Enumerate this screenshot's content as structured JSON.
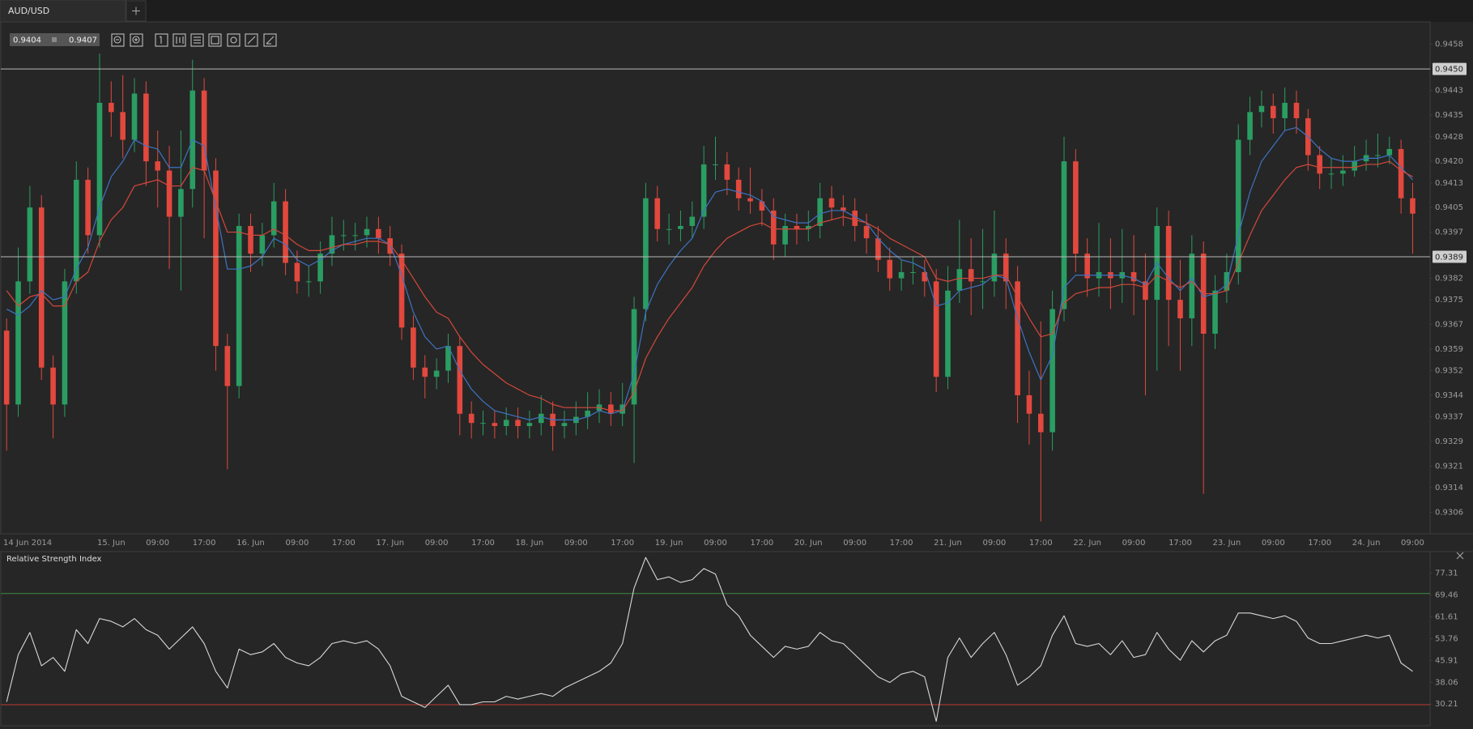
{
  "tab": {
    "title": "AUD/USD"
  },
  "quote": {
    "bid": 0.9404,
    "ask": 0.9407
  },
  "chart_data": [
    {
      "type": "candlestick",
      "up_color": "#2a9d62",
      "down_color": "#e2483d",
      "categories": [
        "14 Jun 2014",
        null,
        null,
        null,
        null,
        null,
        null,
        null,
        null,
        "15. Jun",
        null,
        null,
        null,
        "09:00",
        null,
        null,
        null,
        "17:00",
        null,
        null,
        null,
        "16. Jun",
        null,
        null,
        null,
        "09:00",
        null,
        null,
        null,
        "17:00",
        null,
        null,
        null,
        "17. Jun",
        null,
        null,
        null,
        "09:00",
        null,
        null,
        null,
        "17:00",
        null,
        null,
        null,
        "18. Jun",
        null,
        null,
        null,
        "09:00",
        null,
        null,
        null,
        "17:00",
        null,
        null,
        null,
        "19. Jun",
        null,
        null,
        null,
        "09:00",
        null,
        null,
        null,
        "17:00",
        null,
        null,
        null,
        "20. Jun",
        null,
        null,
        null,
        "09:00",
        null,
        null,
        null,
        "17:00",
        null,
        null,
        null,
        "21. Jun",
        null,
        null,
        null,
        "09:00",
        null,
        null,
        null,
        "17:00",
        null,
        null,
        null,
        "22. Jun",
        null,
        null,
        null,
        "09:00",
        null,
        null,
        null,
        "17:00",
        null,
        null,
        null,
        "23. Jun",
        null,
        null,
        null,
        "09:00",
        null,
        null,
        null,
        "17:00",
        null,
        null,
        null,
        "24. Jun",
        null,
        null,
        null,
        "09:00"
      ],
      "open": [
        0.9365,
        0.9341,
        0.9381,
        0.9405,
        0.9353,
        0.9341,
        0.9381,
        0.9414,
        0.9396,
        0.9439,
        0.9436,
        0.9427,
        0.9442,
        0.942,
        0.9417,
        0.9402,
        0.9411,
        0.9443,
        0.9417,
        0.936,
        0.9347,
        0.9399,
        0.939,
        0.9396,
        0.9407,
        0.9387,
        0.9381,
        0.9381,
        0.939,
        0.9396,
        0.9396,
        0.9396,
        0.9398,
        0.9395,
        0.939,
        0.9366,
        0.9353,
        0.935,
        0.9352,
        0.936,
        0.9338,
        0.9335,
        0.9335,
        0.9334,
        0.9336,
        0.9334,
        0.9335,
        0.9338,
        0.9334,
        0.9335,
        0.9337,
        0.9339,
        0.9341,
        0.9338,
        0.9341,
        0.9372,
        0.9408,
        0.9398,
        0.9398,
        0.9399,
        0.9402,
        0.9419,
        0.9419,
        0.9414,
        0.9408,
        0.9407,
        0.9404,
        0.9393,
        0.9399,
        0.9398,
        0.9399,
        0.9408,
        0.9405,
        0.9404,
        0.9399,
        0.9395,
        0.9388,
        0.9382,
        0.9384,
        0.9384,
        0.9381,
        0.935,
        0.9378,
        0.9385,
        0.9381,
        0.9381,
        0.939,
        0.9381,
        0.9344,
        0.9338,
        0.9332,
        0.9372,
        0.942,
        0.939,
        0.9382,
        0.9384,
        0.9382,
        0.9384,
        0.9381,
        0.9375,
        0.9399,
        0.9375,
        0.9369,
        0.939,
        0.9364,
        0.9378,
        0.9384,
        0.9427,
        0.9436,
        0.9438,
        0.9434,
        0.9439,
        0.9434,
        0.9422,
        0.9416,
        0.9416,
        0.9417,
        0.942,
        0.9422,
        0.9422,
        0.9424,
        0.9408
      ],
      "high": [
        0.9369,
        0.9392,
        0.9412,
        0.9409,
        0.9357,
        0.9385,
        0.942,
        0.9418,
        0.9455,
        0.9446,
        0.9448,
        0.9447,
        0.9446,
        0.943,
        0.9425,
        0.943,
        0.9453,
        0.9447,
        0.9421,
        0.9364,
        0.9403,
        0.9403,
        0.94,
        0.9413,
        0.9411,
        0.9391,
        0.9386,
        0.9394,
        0.9402,
        0.9401,
        0.94,
        0.9402,
        0.9402,
        0.9399,
        0.9393,
        0.937,
        0.9357,
        0.9356,
        0.9364,
        0.9363,
        0.9342,
        0.9339,
        0.9339,
        0.934,
        0.934,
        0.9339,
        0.9344,
        0.9342,
        0.9339,
        0.9342,
        0.9345,
        0.9346,
        0.9345,
        0.9348,
        0.9376,
        0.9413,
        0.9412,
        0.9403,
        0.9404,
        0.9407,
        0.9425,
        0.9428,
        0.9423,
        0.9418,
        0.9418,
        0.9411,
        0.9408,
        0.9403,
        0.9403,
        0.9404,
        0.9413,
        0.9412,
        0.9409,
        0.9408,
        0.9403,
        0.9399,
        0.9392,
        0.9388,
        0.9389,
        0.9388,
        0.9385,
        0.9386,
        0.9401,
        0.9395,
        0.9398,
        0.9404,
        0.9395,
        0.9386,
        0.9352,
        0.9368,
        0.9378,
        0.9428,
        0.9424,
        0.9395,
        0.94,
        0.9395,
        0.9398,
        0.9396,
        0.939,
        0.9405,
        0.9404,
        0.9388,
        0.9396,
        0.9394,
        0.9383,
        0.939,
        0.9432,
        0.9441,
        0.9443,
        0.9442,
        0.9444,
        0.9443,
        0.9437,
        0.9425,
        0.9421,
        0.9422,
        0.9425,
        0.9427,
        0.9429,
        0.9428,
        0.9427,
        0.9413
      ],
      "low": [
        0.9326,
        0.9337,
        0.9377,
        0.9349,
        0.933,
        0.9337,
        0.9377,
        0.939,
        0.9392,
        0.9428,
        0.9421,
        0.9423,
        0.9412,
        0.9405,
        0.9385,
        0.9378,
        0.9405,
        0.9395,
        0.9352,
        0.932,
        0.9343,
        0.9384,
        0.9386,
        0.9392,
        0.9383,
        0.9377,
        0.9376,
        0.9377,
        0.9386,
        0.9391,
        0.9391,
        0.9392,
        0.939,
        0.9386,
        0.9362,
        0.9349,
        0.9343,
        0.9346,
        0.9348,
        0.9331,
        0.933,
        0.9331,
        0.933,
        0.9331,
        0.933,
        0.933,
        0.9331,
        0.9326,
        0.933,
        0.9331,
        0.9333,
        0.9335,
        0.9334,
        0.9334,
        0.9322,
        0.9368,
        0.9394,
        0.9393,
        0.9394,
        0.9395,
        0.9398,
        0.9414,
        0.9409,
        0.9404,
        0.9403,
        0.9399,
        0.9388,
        0.9389,
        0.9393,
        0.9394,
        0.9395,
        0.9401,
        0.9399,
        0.9394,
        0.939,
        0.9384,
        0.9378,
        0.9378,
        0.938,
        0.9376,
        0.9345,
        0.9346,
        0.9374,
        0.937,
        0.9372,
        0.9376,
        0.9372,
        0.9335,
        0.9328,
        0.9303,
        0.9326,
        0.9368,
        0.9384,
        0.9376,
        0.9376,
        0.9372,
        0.9374,
        0.937,
        0.9344,
        0.9352,
        0.936,
        0.9352,
        0.936,
        0.9312,
        0.9359,
        0.9374,
        0.938,
        0.9422,
        0.9431,
        0.9429,
        0.943,
        0.9429,
        0.9417,
        0.9411,
        0.9411,
        0.9412,
        0.9415,
        0.9417,
        0.9418,
        0.9419,
        0.9403,
        0.939
      ],
      "close": [
        0.9341,
        0.9381,
        0.9405,
        0.9353,
        0.9341,
        0.9381,
        0.9414,
        0.9396,
        0.9439,
        0.9436,
        0.9427,
        0.9442,
        0.942,
        0.9417,
        0.9402,
        0.9411,
        0.9443,
        0.9417,
        0.936,
        0.9347,
        0.9399,
        0.939,
        0.9396,
        0.9407,
        0.9387,
        0.9381,
        0.9381,
        0.939,
        0.9396,
        0.9396,
        0.9396,
        0.9398,
        0.9395,
        0.939,
        0.9366,
        0.9353,
        0.935,
        0.9352,
        0.936,
        0.9338,
        0.9335,
        0.9335,
        0.9334,
        0.9336,
        0.9334,
        0.9335,
        0.9338,
        0.9334,
        0.9335,
        0.9337,
        0.9339,
        0.9341,
        0.9338,
        0.9341,
        0.9372,
        0.9408,
        0.9398,
        0.9398,
        0.9399,
        0.9402,
        0.9419,
        0.9419,
        0.9414,
        0.9408,
        0.9407,
        0.9404,
        0.9393,
        0.9399,
        0.9398,
        0.9399,
        0.9408,
        0.9405,
        0.9404,
        0.9399,
        0.9395,
        0.9388,
        0.9382,
        0.9384,
        0.9384,
        0.9381,
        0.935,
        0.9378,
        0.9385,
        0.9381,
        0.9381,
        0.939,
        0.9381,
        0.9344,
        0.9338,
        0.9332,
        0.9372,
        0.942,
        0.939,
        0.9382,
        0.9384,
        0.9382,
        0.9384,
        0.9381,
        0.9375,
        0.9399,
        0.9375,
        0.9369,
        0.939,
        0.9364,
        0.9378,
        0.9384,
        0.9427,
        0.9436,
        0.9438,
        0.9434,
        0.9439,
        0.9434,
        0.9422,
        0.9416,
        0.9416,
        0.9417,
        0.942,
        0.9422,
        0.9422,
        0.9424,
        0.9408,
        0.9403
      ],
      "lines": [
        {
          "color": "#3c74c2",
          "values": [
            0.9372,
            0.937,
            0.9373,
            0.9378,
            0.9375,
            0.9376,
            0.9385,
            0.9392,
            0.9405,
            0.9415,
            0.942,
            0.9427,
            0.9425,
            0.9424,
            0.9418,
            0.9418,
            0.9427,
            0.9425,
            0.9405,
            0.9385,
            0.9385,
            0.9386,
            0.9389,
            0.9395,
            0.9393,
            0.9388,
            0.9386,
            0.9388,
            0.9391,
            0.9393,
            0.9394,
            0.9395,
            0.9395,
            0.9393,
            0.9383,
            0.9371,
            0.9363,
            0.9359,
            0.936,
            0.9352,
            0.9346,
            0.9342,
            0.9339,
            0.9338,
            0.9337,
            0.9336,
            0.9337,
            0.9336,
            0.9336,
            0.9336,
            0.9337,
            0.9339,
            0.9338,
            0.9339,
            0.9351,
            0.9371,
            0.938,
            0.9386,
            0.9391,
            0.9395,
            0.9404,
            0.941,
            0.9411,
            0.941,
            0.9409,
            0.9407,
            0.9402,
            0.9401,
            0.94,
            0.94,
            0.9403,
            0.9404,
            0.9404,
            0.9402,
            0.94,
            0.9395,
            0.9391,
            0.9388,
            0.9387,
            0.9385,
            0.9373,
            0.9374,
            0.9378,
            0.9379,
            0.938,
            0.9383,
            0.9382,
            0.9369,
            0.9358,
            0.9349,
            0.9357,
            0.9379,
            0.9383,
            0.9383,
            0.9383,
            0.9383,
            0.9383,
            0.9382,
            0.938,
            0.9387,
            0.9382,
            0.9378,
            0.9382,
            0.9376,
            0.9377,
            0.938,
            0.9396,
            0.941,
            0.942,
            0.9425,
            0.943,
            0.9431,
            0.9428,
            0.9424,
            0.9421,
            0.942,
            0.942,
            0.9421,
            0.9421,
            0.9422,
            0.9418,
            0.9414
          ]
        },
        {
          "color": "#d4483b",
          "values": [
            0.9378,
            0.9373,
            0.9376,
            0.9377,
            0.9373,
            0.9373,
            0.9381,
            0.9384,
            0.9394,
            0.9401,
            0.9405,
            0.9412,
            0.9413,
            0.9414,
            0.9412,
            0.9412,
            0.9418,
            0.9417,
            0.9407,
            0.9397,
            0.9397,
            0.9396,
            0.9396,
            0.9398,
            0.9396,
            0.9393,
            0.9391,
            0.9391,
            0.9392,
            0.9393,
            0.9393,
            0.9394,
            0.9394,
            0.9393,
            0.9388,
            0.9382,
            0.9376,
            0.9371,
            0.9369,
            0.9363,
            0.9358,
            0.9354,
            0.9351,
            0.9348,
            0.9346,
            0.9344,
            0.9343,
            0.9341,
            0.934,
            0.934,
            0.934,
            0.934,
            0.9339,
            0.9339,
            0.9345,
            0.9356,
            0.9363,
            0.9369,
            0.9374,
            0.9379,
            0.9386,
            0.9391,
            0.9395,
            0.9397,
            0.9399,
            0.94,
            0.9398,
            0.9398,
            0.9398,
            0.9398,
            0.94,
            0.9401,
            0.9402,
            0.9401,
            0.94,
            0.9398,
            0.9395,
            0.9393,
            0.9391,
            0.9389,
            0.9382,
            0.9381,
            0.9382,
            0.9382,
            0.9382,
            0.9383,
            0.9383,
            0.9376,
            0.9369,
            0.9363,
            0.9364,
            0.9374,
            0.9377,
            0.9378,
            0.9379,
            0.9379,
            0.938,
            0.938,
            0.9379,
            0.9383,
            0.9381,
            0.9379,
            0.9381,
            0.9377,
            0.9377,
            0.9378,
            0.9387,
            0.9396,
            0.9404,
            0.9409,
            0.9414,
            0.9418,
            0.9419,
            0.9418,
            0.9418,
            0.9418,
            0.9418,
            0.9419,
            0.9419,
            0.942,
            0.9417,
            0.9415
          ]
        }
      ],
      "hlines": [
        {
          "value": 0.945,
          "label": "0.9450"
        },
        0.9389
      ],
      "ylim": [
        0.9299,
        0.94653
      ],
      "yticks": [
        0.9458,
        0.9443,
        0.9435,
        0.9428,
        {
          "value": 0.942,
          "label": "0.9420"
        },
        0.9413,
        0.9405,
        0.9397,
        0.9382,
        0.9375,
        0.9367,
        0.9359,
        0.9352,
        0.9344,
        0.9337,
        0.9329,
        0.9321,
        0.9314,
        0.9306
      ]
    },
    {
      "type": "line",
      "title": "Relative Strength Index",
      "color": "#d8d8d8",
      "values": [
        31,
        48,
        56,
        44,
        47,
        42,
        57,
        52,
        61,
        60,
        58,
        61,
        57,
        55,
        50,
        54,
        58,
        52,
        42,
        36,
        50,
        48,
        49,
        52,
        47,
        45,
        44,
        47,
        52,
        53,
        52,
        53,
        50,
        44,
        33,
        31,
        29,
        33,
        37,
        30,
        30,
        31,
        31,
        33,
        32,
        33,
        34,
        33,
        36,
        38,
        40,
        42,
        45,
        52,
        72,
        83,
        75,
        76,
        74,
        75,
        79,
        77,
        66,
        62,
        55,
        51,
        47,
        51,
        50,
        51,
        56,
        53,
        52,
        48,
        44,
        40,
        38,
        41,
        42,
        40,
        24,
        47,
        54,
        47,
        52,
        56,
        48,
        37,
        40,
        44,
        55,
        62,
        52,
        51,
        52,
        48,
        53,
        47,
        48,
        56,
        50,
        46,
        53,
        49,
        53,
        55,
        63,
        63,
        62,
        61,
        62,
        60,
        54,
        52,
        52,
        53,
        54,
        55,
        54,
        55,
        45,
        42
      ],
      "levels": [
        {
          "value": 70,
          "color": "#3d8a3d"
        },
        {
          "value": 30,
          "color": "#c43a30"
        }
      ],
      "ylim": [
        22.4,
        85.1
      ],
      "yticks": [
        77.31,
        69.46,
        61.61,
        53.76,
        45.91,
        38.06,
        30.21
      ]
    }
  ]
}
